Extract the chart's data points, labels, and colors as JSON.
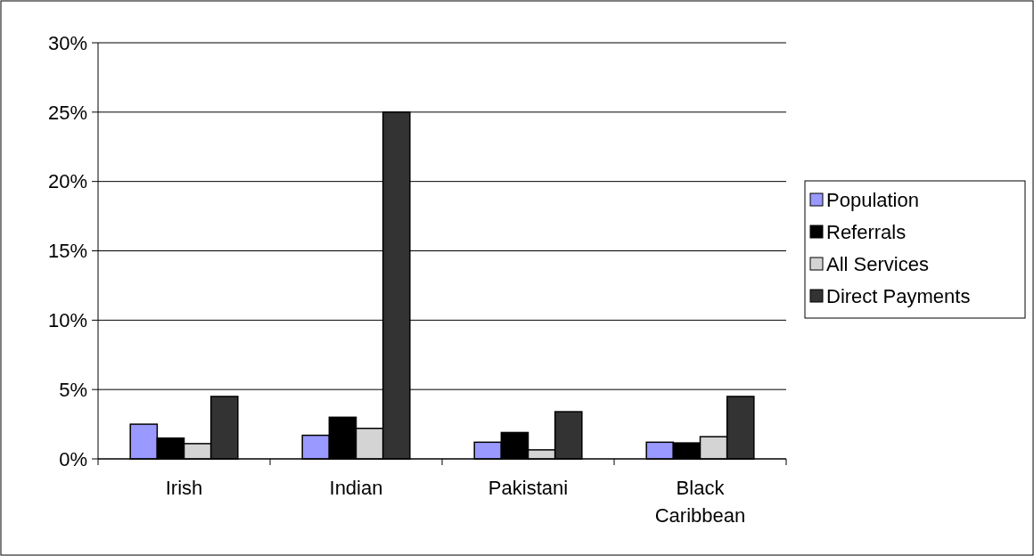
{
  "chart_data": {
    "type": "bar",
    "categories": [
      "Irish",
      "Indian",
      "Pakistani",
      "Black Caribbean"
    ],
    "series": [
      {
        "name": "Population",
        "color": "#9999ff",
        "values": [
          2.5,
          1.7,
          1.2,
          1.2
        ]
      },
      {
        "name": "Referrals",
        "color": "#000000",
        "values": [
          1.5,
          3.0,
          1.9,
          1.15
        ]
      },
      {
        "name": "All Services",
        "color": "#d4d4d4",
        "values": [
          1.1,
          2.2,
          0.65,
          1.6
        ]
      },
      {
        "name": "Direct Payments",
        "color": "#333333",
        "values": [
          4.5,
          25,
          3.4,
          4.5
        ]
      }
    ],
    "ylim": [
      0,
      30
    ],
    "yticks": [
      {
        "value": 0,
        "label": "0%"
      },
      {
        "value": 5,
        "label": "5%"
      },
      {
        "value": 10,
        "label": "10%"
      },
      {
        "value": 15,
        "label": "15%"
      },
      {
        "value": 20,
        "label": "20%"
      },
      {
        "value": 25,
        "label": "25%"
      },
      {
        "value": 30,
        "label": "30%"
      }
    ],
    "grid": "y",
    "legend": "right"
  }
}
